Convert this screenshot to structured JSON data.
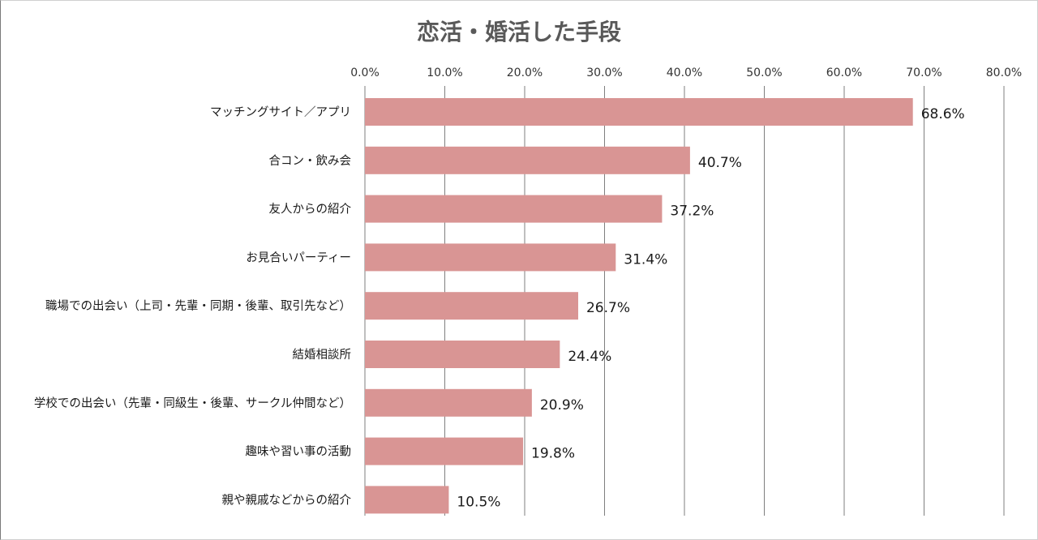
{
  "chart_data": {
    "type": "bar",
    "orientation": "horizontal",
    "title": "恋活・婚活した手段",
    "categories": [
      "マッチングサイト／アプリ",
      "合コン・飲み会",
      "友人からの紹介",
      "お見合いパーティー",
      "職場での出会い（上司・先輩・同期・後輩、取引先など）",
      "結婚相談所",
      "学校での出会い（先輩・同級生・後輩、サークル仲間など）",
      "趣味や習い事の活動",
      "親や親戚などからの紹介"
    ],
    "values": [
      68.6,
      40.7,
      37.2,
      31.4,
      26.7,
      24.4,
      20.9,
      19.8,
      10.5
    ],
    "value_labels": [
      "68.6%",
      "40.7%",
      "37.2%",
      "31.4%",
      "26.7%",
      "24.4%",
      "20.9%",
      "19.8%",
      "10.5%"
    ],
    "xlim": [
      0,
      80
    ],
    "xticks": [
      0,
      10,
      20,
      30,
      40,
      50,
      60,
      70,
      80
    ],
    "xtick_labels": [
      "0.0%",
      "10.0%",
      "20.0%",
      "30.0%",
      "40.0%",
      "50.0%",
      "60.0%",
      "70.0%",
      "80.0%"
    ],
    "x_axis_position": "top",
    "grid": true,
    "legend": "none",
    "bar_color": "#d99594"
  }
}
